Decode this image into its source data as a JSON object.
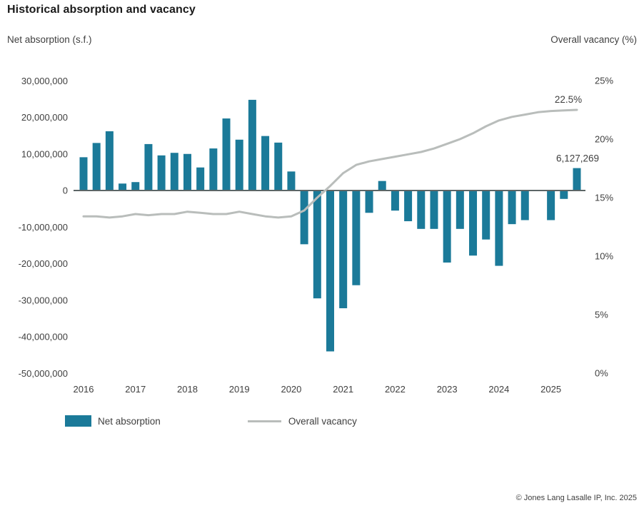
{
  "title": "Historical absorption and vacancy",
  "left_axis_title": "Net absorption (s.f.)",
  "right_axis_title": "Overall vacancy (%)",
  "legend": {
    "bar_label": "Net absorption",
    "line_label": "Overall vacancy"
  },
  "footer": "© Jones Lang Lasalle IP, Inc. 2025",
  "colors": {
    "bar": "#1b7a99",
    "line": "#b9bdbb",
    "axis_line": "#5c6667",
    "text": "#3f3f3f",
    "title_text": "#1a1a1a"
  },
  "chart_data": {
    "type": "bar",
    "subtype": "combo bar + line, dual axis",
    "title": "Historical absorption and vacancy",
    "xlabel": "",
    "ylabel_left": "Net absorption (s.f.)",
    "ylabel_right": "Overall vacancy (%)",
    "grid": false,
    "legend_position": "bottom-left",
    "categories": [
      "2016 Q1",
      "2016 Q2",
      "2016 Q3",
      "2016 Q4",
      "2017 Q1",
      "2017 Q2",
      "2017 Q3",
      "2017 Q4",
      "2018 Q1",
      "2018 Q2",
      "2018 Q3",
      "2018 Q4",
      "2019 Q1",
      "2019 Q2",
      "2019 Q3",
      "2019 Q4",
      "2020 Q1",
      "2020 Q2",
      "2020 Q3",
      "2020 Q4",
      "2021 Q1",
      "2021 Q2",
      "2021 Q3",
      "2021 Q4",
      "2022 Q1",
      "2022 Q2",
      "2022 Q3",
      "2022 Q4",
      "2023 Q1",
      "2023 Q2",
      "2023 Q3",
      "2023 Q4",
      "2024 Q1",
      "2024 Q2",
      "2024 Q3",
      "2024 Q4",
      "2025 Q1",
      "2025 Q2",
      "2025 Q3"
    ],
    "series": [
      {
        "name": "Net absorption",
        "type": "bar",
        "axis": "left",
        "values": [
          9100000,
          13000000,
          16200000,
          1900000,
          2300000,
          12700000,
          9600000,
          10300000,
          10000000,
          6300000,
          11500000,
          19700000,
          13900000,
          24800000,
          14900000,
          13100000,
          5200000,
          -14700000,
          -29500000,
          -44000000,
          -32200000,
          -25900000,
          -6100000,
          2600000,
          -5500000,
          -8400000,
          -10500000,
          -10500000,
          -19700000,
          -10500000,
          -17800000,
          -13400000,
          -20600000,
          -9200000,
          -8100000,
          0,
          -8100000,
          -2300000,
          6127269
        ]
      },
      {
        "name": "Overall vacancy",
        "type": "line",
        "axis": "right",
        "values": [
          13.4,
          13.4,
          13.3,
          13.4,
          13.6,
          13.5,
          13.6,
          13.6,
          13.8,
          13.7,
          13.6,
          13.6,
          13.8,
          13.6,
          13.4,
          13.3,
          13.4,
          13.9,
          15.0,
          16.0,
          17.1,
          17.8,
          18.1,
          18.3,
          18.5,
          18.7,
          18.9,
          19.2,
          19.6,
          20.0,
          20.5,
          21.1,
          21.6,
          21.9,
          22.1,
          22.3,
          22.4,
          22.45,
          22.5
        ]
      }
    ],
    "left_axis": {
      "range": [
        -50000000,
        30000000
      ],
      "tick_values": [
        30000000,
        20000000,
        10000000,
        0,
        -10000000,
        -20000000,
        -30000000,
        -40000000,
        -50000000
      ],
      "tick_labels": [
        "30,000,000",
        "20,000,000",
        "10,000,000",
        "0",
        "-10,000,000",
        "-20,000,000",
        "-30,000,000",
        "-40,000,000",
        "-50,000,000"
      ]
    },
    "right_axis": {
      "range": [
        0,
        25
      ],
      "tick_values": [
        25,
        20,
        15,
        10,
        5,
        0
      ],
      "tick_labels": [
        "25%",
        "20%",
        "15%",
        "10%",
        "5%",
        "0%"
      ]
    },
    "x_year_labels": [
      "2016",
      "2017",
      "2018",
      "2019",
      "2020",
      "2021",
      "2022",
      "2023",
      "2024",
      "2025"
    ],
    "annotations": [
      {
        "text": "22.5%",
        "target": "line-end"
      },
      {
        "text": "6,127,269",
        "target": "last-bar"
      }
    ]
  }
}
